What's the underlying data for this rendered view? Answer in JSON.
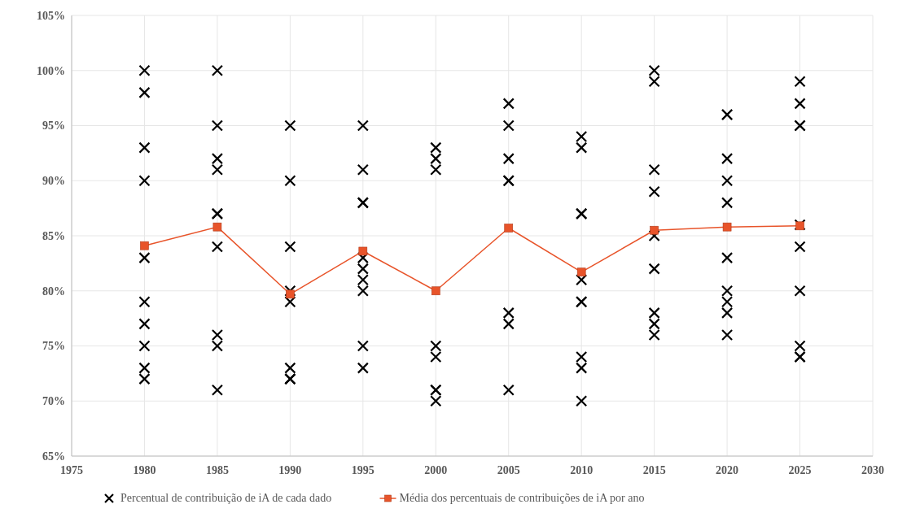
{
  "chart_data": {
    "type": "scatter",
    "xlim": [
      1975,
      2030
    ],
    "xticks": [
      1975,
      1980,
      1985,
      1990,
      1995,
      2000,
      2005,
      2010,
      2015,
      2020,
      2025,
      2030
    ],
    "ylim": [
      65,
      105
    ],
    "yticks": [
      {
        "value": 65,
        "label": "65%"
      },
      {
        "value": 70,
        "label": "70%"
      },
      {
        "value": 75,
        "label": "75%"
      },
      {
        "value": 80,
        "label": "80%"
      },
      {
        "value": 85,
        "label": "85%"
      },
      {
        "value": 90,
        "label": "90%"
      },
      {
        "value": 95,
        "label": "95%"
      },
      {
        "value": 100,
        "label": "100%"
      },
      {
        "value": 105,
        "label": "105%"
      }
    ],
    "grid": true,
    "legend": "bottom",
    "series": [
      {
        "name": "Percentual de contribuição de iA de cada dado",
        "marker": "cross",
        "color": "#000000",
        "x": [
          1980,
          1980,
          1980,
          1980,
          1980,
          1980,
          1980,
          1980,
          1980,
          1980,
          1985,
          1985,
          1985,
          1985,
          1985,
          1985,
          1985,
          1985,
          1985,
          1985,
          1990,
          1990,
          1990,
          1990,
          1990,
          1990,
          1990,
          1990,
          1995,
          1995,
          1995,
          1995,
          1995,
          1995,
          1995,
          1995,
          1995,
          1995,
          2000,
          2000,
          2000,
          2000,
          2000,
          2000,
          2000,
          2000,
          2005,
          2005,
          2005,
          2005,
          2005,
          2005,
          2005,
          2005,
          2010,
          2010,
          2010,
          2010,
          2010,
          2010,
          2010,
          2010,
          2010,
          2010,
          2015,
          2015,
          2015,
          2015,
          2015,
          2015,
          2015,
          2015,
          2015,
          2020,
          2020,
          2020,
          2020,
          2020,
          2020,
          2020,
          2020,
          2020,
          2020,
          2025,
          2025,
          2025,
          2025,
          2025,
          2025,
          2025,
          2025,
          2025,
          2025
        ],
        "values": [
          100,
          98,
          93,
          90,
          83,
          79,
          77,
          75,
          73,
          72,
          100,
          95,
          92,
          91,
          87,
          87,
          84,
          76,
          75,
          71,
          95,
          90,
          84,
          80,
          79,
          73,
          72,
          72,
          95,
          91,
          88,
          88,
          83,
          82,
          81,
          80,
          75,
          73,
          93,
          92,
          91,
          75,
          74,
          71,
          71,
          70,
          97,
          95,
          92,
          90,
          90,
          78,
          77,
          71,
          94,
          93,
          87,
          87,
          81,
          79,
          79,
          74,
          73,
          70,
          100,
          99,
          91,
          89,
          85,
          82,
          78,
          77,
          76,
          96,
          96,
          92,
          90,
          88,
          83,
          80,
          79,
          78,
          76,
          99,
          97,
          95,
          95,
          86,
          84,
          80,
          75,
          74,
          74
        ]
      },
      {
        "name": "Média dos percentuais de contribuições de iA por ano",
        "type": "line",
        "marker": "square",
        "color": "#e8542a",
        "x": [
          1980,
          1985,
          1990,
          1995,
          2000,
          2005,
          2010,
          2015,
          2020,
          2025
        ],
        "values": [
          84.1,
          85.8,
          79.7,
          83.6,
          80,
          85.7,
          81.7,
          85.5,
          85.8,
          85.9
        ]
      }
    ]
  }
}
